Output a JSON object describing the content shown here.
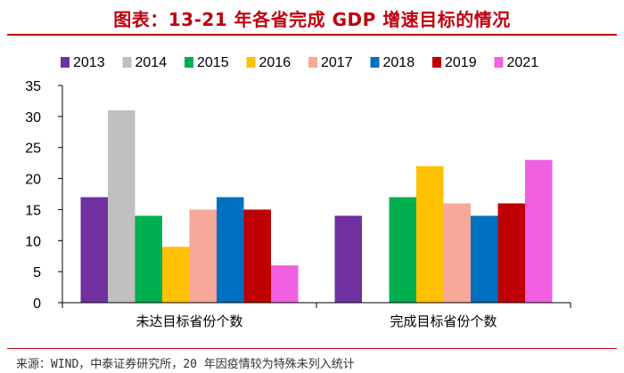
{
  "header": {
    "title": "图表：13-21 年各省完成 GDP 增速目标的情况"
  },
  "footer": {
    "source": "来源：WIND，中泰证券研究所，20 年因疫情较为特殊未列入统计"
  },
  "chart_data": {
    "type": "bar",
    "title": "",
    "xlabel": "",
    "ylabel": "",
    "ylim": [
      0,
      35
    ],
    "yticks": [
      0,
      5,
      10,
      15,
      20,
      25,
      30,
      35
    ],
    "grid": false,
    "legend_position": "top",
    "categories": [
      "未达目标省份个数",
      "完成目标省份个数"
    ],
    "series": [
      {
        "name": "2013",
        "color": "#7030a0",
        "values": [
          17,
          14
        ]
      },
      {
        "name": "2014",
        "color": "#c0c0c0",
        "values": [
          31,
          0
        ]
      },
      {
        "name": "2015",
        "color": "#00b050",
        "values": [
          14,
          17
        ]
      },
      {
        "name": "2016",
        "color": "#ffc000",
        "values": [
          9,
          22
        ]
      },
      {
        "name": "2017",
        "color": "#f8a898",
        "values": [
          15,
          16
        ]
      },
      {
        "name": "2018",
        "color": "#0070c0",
        "values": [
          17,
          14
        ]
      },
      {
        "name": "2019",
        "color": "#c00000",
        "values": [
          15,
          16
        ]
      },
      {
        "name": "2021",
        "color": "#f060e0",
        "values": [
          6,
          23
        ]
      }
    ]
  }
}
